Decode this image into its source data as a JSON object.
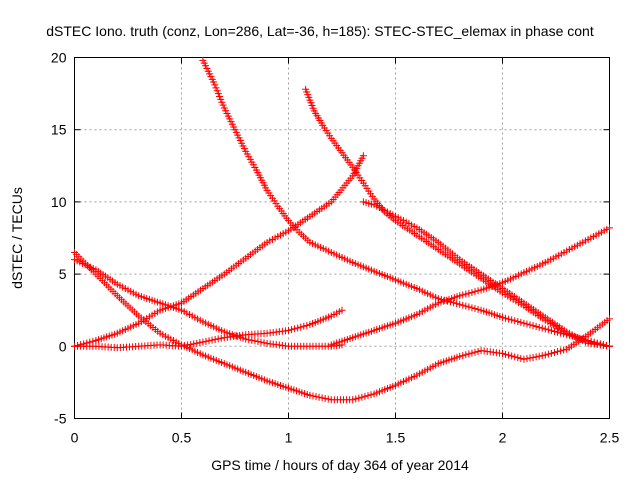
{
  "chart_data": {
    "type": "scatter",
    "title": "dSTEC Iono. truth (conz, Lon=286, Lat=-36, h=185): STEC-STEC_elemax in phase cont",
    "xlabel": "GPS time / hours of day 364 of year 2014",
    "ylabel": "dSTEC  / TECUs",
    "xlim": [
      0,
      2.5
    ],
    "ylim": [
      -5,
      20
    ],
    "xticks": [
      0,
      0.5,
      1,
      1.5,
      2,
      2.5
    ],
    "xtick_labels": [
      "0",
      "0.5",
      "1",
      "1.5",
      "2",
      "2.5"
    ],
    "yticks": [
      -5,
      0,
      5,
      10,
      15,
      20
    ],
    "ytick_labels": [
      "-5",
      "0",
      "5",
      "10",
      "15",
      "20"
    ],
    "grid": true,
    "legend": "none",
    "marker": "plus",
    "color": "#ff0000",
    "series": [
      {
        "x": [
          0.0,
          0.1,
          0.2,
          0.3,
          0.4,
          0.5,
          0.6,
          0.7,
          0.8,
          0.9,
          1.0,
          1.1,
          1.2,
          1.25
        ],
        "y": [
          0.0,
          0.0,
          -0.1,
          0.0,
          0.1,
          0.0,
          0.3,
          0.6,
          0.8,
          0.9,
          1.1,
          1.5,
          2.1,
          2.5
        ]
      },
      {
        "x": [
          0.0,
          0.1,
          0.2,
          0.3,
          0.4,
          0.5,
          0.6,
          0.7,
          0.8,
          0.9,
          1.0,
          1.1,
          1.2,
          1.3,
          1.35
        ],
        "y": [
          0.0,
          0.4,
          0.9,
          1.6,
          2.5,
          3.0,
          4.0,
          5.0,
          6.1,
          7.2,
          8.0,
          9.0,
          10.0,
          11.8,
          13.2
        ]
      },
      {
        "x": [
          0.0,
          0.1,
          0.2,
          0.3,
          0.4,
          0.5,
          0.6,
          0.7,
          0.8,
          0.9,
          1.0,
          1.1,
          1.2,
          1.25
        ],
        "y": [
          6.0,
          5.3,
          4.3,
          3.5,
          3.0,
          2.5,
          1.7,
          1.0,
          0.5,
          0.2,
          0.0,
          0.0,
          0.0,
          0.1
        ]
      },
      {
        "x": [
          0.0,
          0.1,
          0.2,
          0.3,
          0.4,
          0.5,
          0.6,
          0.7,
          0.8,
          0.9,
          1.0,
          1.1,
          1.2,
          1.3,
          1.4,
          1.5,
          1.6,
          1.7,
          1.8,
          1.9,
          2.0,
          2.1,
          2.2,
          2.3,
          2.4,
          2.5
        ],
        "y": [
          6.5,
          5.0,
          3.5,
          2.1,
          0.9,
          0.1,
          -0.6,
          -1.2,
          -1.8,
          -2.4,
          -2.9,
          -3.4,
          -3.7,
          -3.7,
          -3.3,
          -2.7,
          -2.0,
          -1.2,
          -0.7,
          -0.3,
          -0.5,
          -0.9,
          -0.6,
          -0.2,
          0.8,
          1.9
        ]
      },
      {
        "x": [
          0.6,
          0.65,
          0.7,
          0.75,
          0.8,
          0.85,
          0.9,
          0.95,
          1.0,
          1.05,
          1.1,
          1.2,
          1.3,
          1.4,
          1.5,
          1.6,
          1.7,
          1.8,
          1.9,
          2.0,
          2.1,
          2.2,
          2.3,
          2.4,
          2.5
        ],
        "y": [
          19.8,
          18.3,
          16.5,
          15.0,
          13.5,
          12.2,
          10.8,
          9.7,
          8.7,
          7.9,
          7.2,
          6.5,
          5.8,
          5.2,
          4.6,
          4.0,
          3.3,
          2.9,
          2.5,
          2.0,
          1.6,
          1.2,
          0.8,
          0.4,
          0.0
        ]
      },
      {
        "x": [
          1.08,
          1.12,
          1.16,
          1.2,
          1.25,
          1.3,
          1.35,
          1.4,
          1.45,
          1.5,
          1.6,
          1.7,
          1.8,
          1.9,
          2.0,
          2.1,
          2.2,
          2.3,
          2.4,
          2.5
        ],
        "y": [
          17.8,
          16.3,
          15.3,
          14.4,
          13.4,
          12.4,
          11.3,
          10.2,
          9.3,
          8.7,
          7.7,
          6.7,
          5.7,
          4.7,
          3.7,
          2.8,
          1.8,
          0.9,
          0.3,
          0.0
        ]
      },
      {
        "x": [
          1.35,
          1.4,
          1.5,
          1.6,
          1.7,
          1.8,
          1.9,
          2.0,
          2.1,
          2.2,
          2.3,
          2.35,
          2.4,
          2.5
        ],
        "y": [
          10.0,
          9.8,
          9.0,
          8.2,
          7.2,
          6.0,
          5.0,
          4.0,
          3.0,
          2.0,
          1.0,
          0.6,
          0.2,
          0.0
        ]
      },
      {
        "x": [
          1.2,
          1.3,
          1.4,
          1.5,
          1.6,
          1.7,
          1.8,
          1.9,
          2.0,
          2.1,
          2.2,
          2.3,
          2.4,
          2.5
        ],
        "y": [
          0.1,
          0.6,
          1.1,
          1.6,
          2.2,
          3.0,
          3.5,
          3.9,
          4.4,
          5.1,
          5.8,
          6.6,
          7.4,
          8.2
        ]
      }
    ]
  }
}
